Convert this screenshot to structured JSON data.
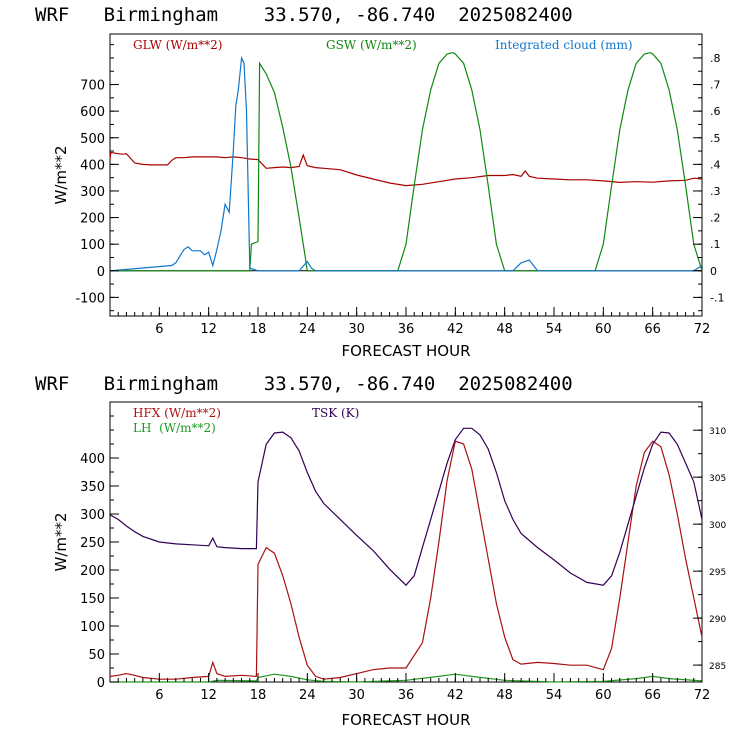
{
  "chart_data": [
    {
      "type": "line",
      "title": "WRF   Birmingham    33.570, -86.740  2025082400",
      "xlabel": "FORECAST HOUR",
      "ylabel": "W/m**2",
      "xlim": [
        0,
        72
      ],
      "ylim": [
        -170,
        890
      ],
      "xticks": [
        6,
        12,
        18,
        24,
        30,
        36,
        42,
        48,
        54,
        60,
        66,
        72
      ],
      "yticks": [
        -100,
        0,
        100,
        200,
        300,
        400,
        500,
        600,
        700
      ],
      "right_axis": {
        "ylim": [
          -0.17,
          0.89
        ],
        "ticks": [
          -0.1,
          0,
          0.1,
          0.2,
          0.3,
          0.4,
          0.5,
          0.6,
          0.7,
          0.8
        ],
        "labels": [
          "-.1",
          "0",
          ".1",
          ".2",
          ".3",
          ".4",
          ".5",
          ".6",
          ".7",
          ".8"
        ]
      },
      "grid": false,
      "legend_position": "top",
      "series": [
        {
          "name": "GLW (W/m**2)",
          "color": "#aa0000",
          "axis": "left",
          "x": [
            0,
            0.1,
            1,
            1.5,
            2,
            3,
            4,
            5,
            6,
            7,
            7.5,
            8,
            9,
            10,
            11,
            12,
            13,
            14,
            15,
            16,
            17,
            18,
            19,
            20,
            21,
            22,
            23,
            23.5,
            24,
            25,
            26,
            28,
            30,
            32,
            34,
            36,
            38,
            40,
            42,
            44,
            46,
            48,
            49,
            50,
            50.5,
            51,
            52,
            54,
            56,
            58,
            60,
            62,
            64,
            66,
            68,
            70,
            71,
            72
          ],
          "y": [
            420,
            445,
            440,
            438,
            440,
            405,
            400,
            398,
            398,
            398,
            415,
            425,
            425,
            428,
            428,
            428,
            428,
            425,
            428,
            425,
            420,
            418,
            385,
            388,
            390,
            388,
            392,
            435,
            395,
            388,
            385,
            380,
            360,
            345,
            330,
            320,
            325,
            335,
            345,
            350,
            358,
            358,
            362,
            355,
            375,
            355,
            348,
            345,
            342,
            342,
            338,
            332,
            335,
            333,
            338,
            340,
            348,
            345
          ]
        },
        {
          "name": "GSW (W/m**2)",
          "color": "#118811",
          "axis": "left",
          "x": [
            0,
            12.9,
            13,
            17,
            17.2,
            18,
            18.2,
            19,
            20,
            21,
            22,
            23,
            23.7,
            24,
            35,
            36,
            37,
            38,
            39,
            40,
            41,
            41.7,
            42,
            43,
            44,
            45,
            46,
            47,
            48,
            59,
            60,
            61,
            62,
            63,
            64,
            65,
            65.7,
            66,
            67,
            68,
            69,
            70,
            71,
            71.5,
            72
          ],
          "y": [
            0,
            0,
            0,
            0,
            100,
            110,
            780,
            740,
            670,
            540,
            390,
            200,
            60,
            0,
            0,
            100,
            320,
            530,
            680,
            780,
            815,
            820,
            815,
            780,
            680,
            530,
            320,
            100,
            0,
            0,
            100,
            320,
            530,
            680,
            780,
            815,
            820,
            815,
            780,
            680,
            530,
            320,
            100,
            50,
            0
          ]
        },
        {
          "name": "Integrated cloud (mm)",
          "color": "#1177cc",
          "axis": "right",
          "x": [
            0,
            7.5,
            8,
            9,
            9.5,
            10,
            11,
            11.5,
            12,
            12.5,
            13,
            13.5,
            14,
            14.5,
            15,
            15.3,
            15.6,
            16,
            16.3,
            16.6,
            17,
            18,
            23,
            24,
            24.5,
            25,
            49,
            50,
            51,
            52,
            71,
            71.5,
            72
          ],
          "y": [
            0,
            0.02,
            0.03,
            0.08,
            0.09,
            0.075,
            0.075,
            0.06,
            0.07,
            0.02,
            0.08,
            0.15,
            0.25,
            0.22,
            0.45,
            0.62,
            0.68,
            0.8,
            0.78,
            0.6,
            0.01,
            0,
            0,
            0.035,
            0.01,
            0,
            0,
            0.03,
            0.04,
            0,
            0,
            0.01,
            0.02
          ]
        }
      ]
    },
    {
      "type": "line",
      "title": "WRF   Birmingham    33.570, -86.740  2025082400",
      "xlabel": "FORECAST HOUR",
      "ylabel": "W/m**2",
      "xlim": [
        0,
        72
      ],
      "ylim": [
        0,
        500
      ],
      "xticks": [
        6,
        12,
        18,
        24,
        30,
        36,
        42,
        48,
        54,
        60,
        66,
        72
      ],
      "yticks": [
        0,
        50,
        100,
        150,
        200,
        250,
        300,
        350,
        400
      ],
      "right_axis": {
        "ylim": [
          283.2,
          313
        ],
        "ticks": [
          285,
          290,
          295,
          300,
          305,
          310
        ],
        "labels": [
          "285",
          "290",
          "295",
          "300",
          "305",
          "310"
        ]
      },
      "grid": false,
      "legend_position": "top-left",
      "series": [
        {
          "name": "HFX (W/m**2)",
          "color": "#aa1111",
          "axis": "left",
          "x": [
            0,
            1,
            2,
            3,
            4,
            6,
            8,
            10,
            12,
            12.5,
            13,
            14,
            16,
            17.8,
            18,
            19,
            20,
            21,
            22,
            23,
            24,
            25,
            26,
            28,
            30,
            32,
            34,
            36,
            38,
            39,
            40,
            41,
            42,
            43,
            44,
            45,
            46,
            47,
            48,
            49,
            50,
            52,
            54,
            56,
            58,
            60,
            61,
            62,
            63,
            64,
            65,
            66,
            67,
            68,
            69,
            70,
            71,
            72
          ],
          "y": [
            10,
            12,
            15,
            12,
            8,
            5,
            5,
            8,
            10,
            35,
            15,
            10,
            12,
            10,
            210,
            240,
            230,
            190,
            140,
            80,
            30,
            10,
            5,
            8,
            15,
            22,
            25,
            25,
            70,
            150,
            250,
            360,
            430,
            425,
            380,
            300,
            220,
            140,
            80,
            40,
            32,
            35,
            33,
            30,
            30,
            22,
            60,
            150,
            250,
            350,
            410,
            430,
            420,
            370,
            300,
            220,
            150,
            80
          ]
        },
        {
          "name": "LH  (W/m**2)",
          "color": "#229922",
          "axis": "left",
          "x": [
            0,
            12,
            13,
            17.8,
            18,
            20,
            22,
            24,
            26,
            30,
            36,
            40,
            42,
            44,
            48,
            54,
            60,
            64,
            66,
            68,
            72
          ],
          "y": [
            0,
            0,
            3,
            2,
            8,
            14,
            10,
            4,
            1,
            0,
            3,
            10,
            14,
            10,
            3,
            0,
            1,
            6,
            10,
            6,
            2
          ]
        },
        {
          "name": "TSK (K)",
          "color": "#330055",
          "axis": "right",
          "x": [
            0,
            1,
            2,
            3,
            4,
            6,
            8,
            10,
            12,
            12.5,
            13,
            14,
            16,
            17.8,
            18,
            18.5,
            19,
            20,
            21,
            22,
            23,
            24,
            25,
            26,
            28,
            30,
            32,
            34,
            36,
            37,
            38,
            39,
            40,
            41,
            42,
            43,
            44,
            45,
            46,
            47,
            48,
            49,
            50,
            52,
            54,
            56,
            58,
            60,
            61,
            62,
            63,
            64,
            65,
            66,
            67,
            68,
            69,
            70,
            71,
            72
          ],
          "y": [
            301,
            300.5,
            299.8,
            299.2,
            298.7,
            298.1,
            297.9,
            297.8,
            297.7,
            298.5,
            297.6,
            297.5,
            297.4,
            297.4,
            304.5,
            306.5,
            308.5,
            309.7,
            309.8,
            309.2,
            307.8,
            305.5,
            303.5,
            302.2,
            300.5,
            298.8,
            297.2,
            295.2,
            293.5,
            294.5,
            297.5,
            300.5,
            303.5,
            306.5,
            309,
            310.2,
            310.2,
            309.5,
            308,
            305.5,
            302.5,
            300.5,
            299,
            297.5,
            296.2,
            294.8,
            293.8,
            293.5,
            294.5,
            297,
            300,
            303,
            306,
            308.5,
            309.8,
            309.7,
            308.5,
            306.5,
            304.5,
            300.5
          ]
        }
      ]
    }
  ]
}
